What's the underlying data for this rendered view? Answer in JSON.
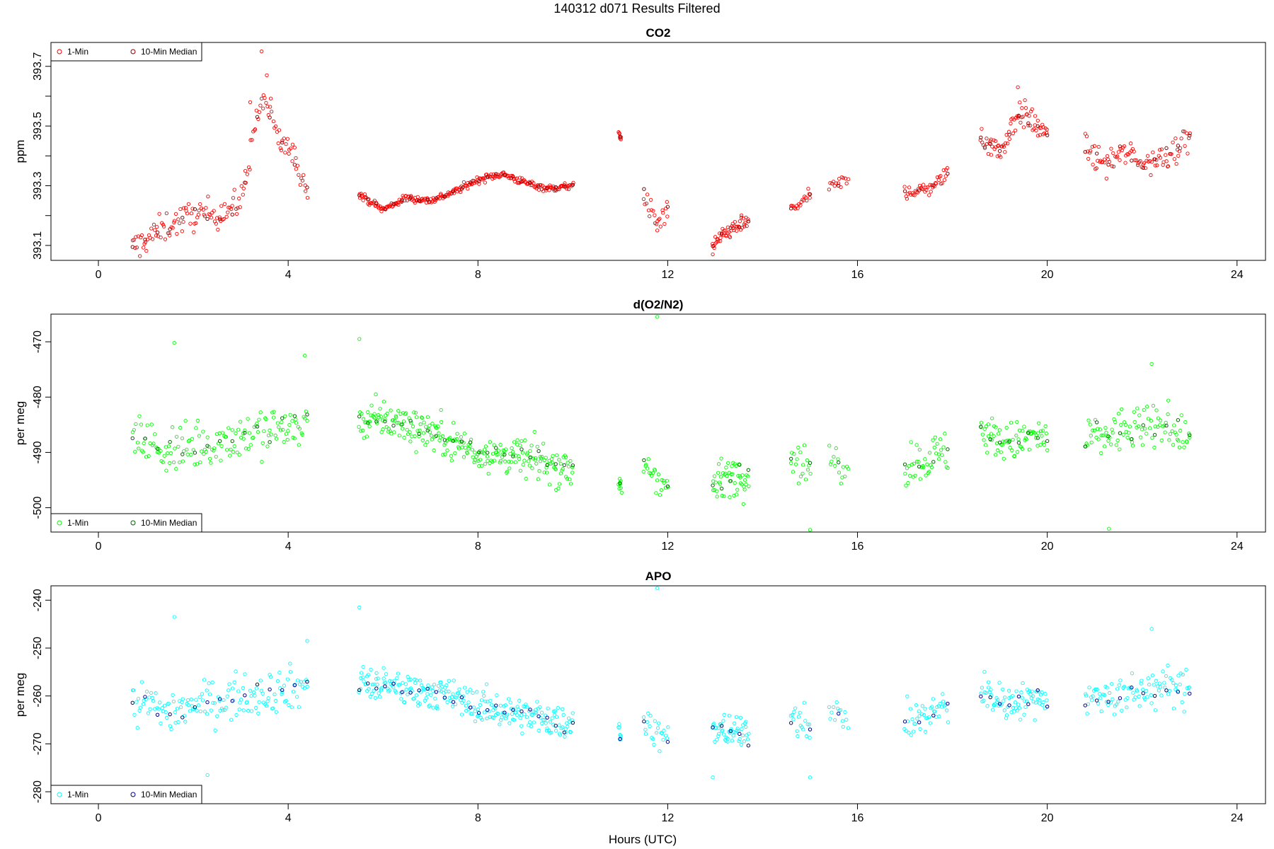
{
  "page_title": "140312   d071   Results Filtered",
  "x_axis_label": "Hours (UTC)",
  "legend": {
    "one_min": "1-Min",
    "ten_min_median": "10-Min Median"
  },
  "chart_data": [
    {
      "type": "scatter",
      "title": "CO2",
      "ylabel": "ppm",
      "xlabel": "",
      "xlim": [
        -1,
        24.6
      ],
      "ylim": [
        393.05,
        393.78
      ],
      "x_ticks": [
        0,
        4,
        8,
        12,
        16,
        20,
        24
      ],
      "y_ticks": [
        393.1,
        393.3,
        393.5,
        393.7
      ],
      "y_minor_ticks": [
        393.2,
        393.4,
        393.6
      ],
      "legend_position": "top-left",
      "colors": {
        "one_min": "#ff0000",
        "ten_min_median": "#8b0000"
      },
      "segments": [
        {
          "x": [
            0.72,
            1.0,
            1.5,
            2.0,
            2.5,
            3.0,
            3.3,
            3.5,
            3.8,
            4.0,
            4.4
          ],
          "y": [
            393.09,
            393.12,
            393.17,
            393.2,
            393.21,
            393.24,
            393.5,
            393.6,
            393.45,
            393.43,
            393.3
          ],
          "spread": 0.05,
          "n": 150
        },
        {
          "x": [
            5.5,
            6.0,
            6.5,
            7.0,
            7.5,
            8.0,
            8.5,
            9.0,
            9.5,
            10.0
          ],
          "y": [
            393.27,
            393.22,
            393.26,
            393.25,
            393.28,
            393.32,
            393.34,
            393.31,
            393.29,
            393.3
          ],
          "spread": 0.012,
          "n": 260
        },
        {
          "x": [
            10.97,
            11.02
          ],
          "y": [
            393.48,
            393.45
          ],
          "spread": 0.012,
          "n": 8
        },
        {
          "x": [
            11.5,
            11.75,
            12.0
          ],
          "y": [
            393.27,
            393.17,
            393.22
          ],
          "spread": 0.04,
          "n": 22
        },
        {
          "x": [
            12.95,
            13.3,
            13.7
          ],
          "y": [
            393.1,
            393.15,
            393.18
          ],
          "spread": 0.025,
          "n": 50
        },
        {
          "x": [
            14.6,
            15.0
          ],
          "y": [
            393.22,
            393.27
          ],
          "spread": 0.02,
          "n": 18
        },
        {
          "x": [
            15.4,
            15.8
          ],
          "y": [
            393.29,
            393.32
          ],
          "spread": 0.025,
          "n": 14
        },
        {
          "x": [
            17.0,
            17.5,
            17.9
          ],
          "y": [
            393.28,
            393.29,
            393.34
          ],
          "spread": 0.025,
          "n": 42
        },
        {
          "x": [
            18.6,
            19.0,
            19.4,
            19.8,
            20.0
          ],
          "y": [
            393.47,
            393.41,
            393.55,
            393.5,
            393.46
          ],
          "spread": 0.045,
          "n": 75
        },
        {
          "x": [
            20.8,
            21.2,
            21.6,
            22.0,
            22.5,
            23.0
          ],
          "y": [
            393.43,
            393.37,
            393.41,
            393.38,
            393.4,
            393.47
          ],
          "spread": 0.045,
          "n": 95
        }
      ],
      "highlights": [
        {
          "x": 3.44,
          "y": 393.75
        },
        {
          "x": 3.55,
          "y": 393.67
        },
        {
          "x": 3.2,
          "y": 393.58
        },
        {
          "x": 11.78,
          "y": 393.15
        },
        {
          "x": 19.38,
          "y": 393.63
        },
        {
          "x": 12.95,
          "y": 393.07
        }
      ]
    },
    {
      "type": "scatter",
      "title": "d(O2/N2)",
      "ylabel": "per meg",
      "xlabel": "",
      "xlim": [
        -1,
        24.6
      ],
      "ylim": [
        -504.4,
        -465.0
      ],
      "x_ticks": [
        0,
        4,
        8,
        12,
        16,
        20,
        24
      ],
      "y_ticks": [
        -470,
        -480,
        -490,
        -500
      ],
      "y_minor_ticks": [],
      "legend_position": "bottom-left",
      "colors": {
        "one_min": "#00ff00",
        "ten_min_median": "#006400"
      },
      "segments": [
        {
          "x": [
            0.72,
            1.5,
            2.5,
            3.5,
            4.4
          ],
          "y": [
            -487,
            -490,
            -488,
            -486,
            -485
          ],
          "spread": 4.5,
          "n": 150
        },
        {
          "x": [
            5.5,
            6.0,
            7.0,
            8.0,
            9.0,
            10.0
          ],
          "y": [
            -484,
            -484,
            -486,
            -490,
            -491,
            -493
          ],
          "spread": 3.5,
          "n": 260
        },
        {
          "x": [
            10.97,
            11.02
          ],
          "y": [
            -495,
            -497
          ],
          "spread": 2.0,
          "n": 8
        },
        {
          "x": [
            11.5,
            11.75,
            12.0
          ],
          "y": [
            -492,
            -494,
            -496
          ],
          "spread": 3.0,
          "n": 22
        },
        {
          "x": [
            12.95,
            13.3,
            13.7
          ],
          "y": [
            -496,
            -494,
            -494
          ],
          "spread": 3.5,
          "n": 50
        },
        {
          "x": [
            14.6,
            15.0
          ],
          "y": [
            -490,
            -493
          ],
          "spread": 4.0,
          "n": 18
        },
        {
          "x": [
            15.4,
            15.8
          ],
          "y": [
            -491,
            -493
          ],
          "spread": 3.0,
          "n": 14
        },
        {
          "x": [
            17.0,
            17.5,
            17.9
          ],
          "y": [
            -492,
            -491,
            -490
          ],
          "spread": 4.0,
          "n": 42
        },
        {
          "x": [
            18.6,
            19.0,
            19.4,
            19.8,
            20.0
          ],
          "y": [
            -486,
            -488,
            -488,
            -487,
            -488
          ],
          "spread": 3.5,
          "n": 75
        },
        {
          "x": [
            20.8,
            21.2,
            21.6,
            22.0,
            22.5,
            23.0
          ],
          "y": [
            -488,
            -487,
            -486,
            -486,
            -485,
            -487
          ],
          "spread": 4.0,
          "n": 95
        }
      ],
      "highlights": [
        {
          "x": 11.78,
          "y": -465.5
        },
        {
          "x": 5.5,
          "y": -469.5
        },
        {
          "x": 1.6,
          "y": -470.2
        },
        {
          "x": 4.35,
          "y": -472.5
        },
        {
          "x": 21.3,
          "y": -503.8
        },
        {
          "x": 15.0,
          "y": -504.0
        },
        {
          "x": 22.2,
          "y": -474.0
        }
      ]
    },
    {
      "type": "scatter",
      "title": "APO",
      "ylabel": "per meg",
      "xlabel": "Hours (UTC)",
      "xlim": [
        -1,
        24.6
      ],
      "ylim": [
        -282.5,
        -237.0
      ],
      "x_ticks": [
        0,
        4,
        8,
        12,
        16,
        20,
        24
      ],
      "y_ticks": [
        -240,
        -250,
        -260,
        -270,
        -280
      ],
      "y_minor_ticks": [],
      "legend_position": "bottom-left",
      "colors": {
        "one_min": "#00ffff",
        "ten_min_median": "#00008b"
      },
      "segments": [
        {
          "x": [
            0.72,
            1.5,
            2.5,
            3.5,
            4.4
          ],
          "y": [
            -261,
            -263,
            -261,
            -259,
            -258
          ],
          "spread": 4.5,
          "n": 150
        },
        {
          "x": [
            5.5,
            6.0,
            7.0,
            8.0,
            9.0,
            10.0
          ],
          "y": [
            -257,
            -258,
            -259,
            -262,
            -264,
            -266
          ],
          "spread": 3.5,
          "n": 260
        },
        {
          "x": [
            10.97,
            11.02
          ],
          "y": [
            -267,
            -269
          ],
          "spread": 2.0,
          "n": 8
        },
        {
          "x": [
            11.5,
            11.75,
            12.0
          ],
          "y": [
            -265,
            -268,
            -269
          ],
          "spread": 3.0,
          "n": 22
        },
        {
          "x": [
            12.95,
            13.3,
            13.7
          ],
          "y": [
            -268,
            -267,
            -268
          ],
          "spread": 3.5,
          "n": 50
        },
        {
          "x": [
            14.6,
            15.0
          ],
          "y": [
            -264,
            -266
          ],
          "spread": 4.0,
          "n": 18
        },
        {
          "x": [
            15.4,
            15.8
          ],
          "y": [
            -263,
            -265
          ],
          "spread": 3.0,
          "n": 14
        },
        {
          "x": [
            17.0,
            17.5,
            17.9
          ],
          "y": [
            -266,
            -264,
            -262
          ],
          "spread": 4.0,
          "n": 42
        },
        {
          "x": [
            18.6,
            19.0,
            19.4,
            19.8,
            20.0
          ],
          "y": [
            -259,
            -261,
            -261,
            -260,
            -261
          ],
          "spread": 3.5,
          "n": 75
        },
        {
          "x": [
            20.8,
            21.2,
            21.6,
            22.0,
            22.5,
            23.0
          ],
          "y": [
            -261,
            -260,
            -260,
            -259,
            -258,
            -259
          ],
          "spread": 4.0,
          "n": 95
        }
      ],
      "highlights": [
        {
          "x": 11.78,
          "y": -237.5
        },
        {
          "x": 5.5,
          "y": -241.5
        },
        {
          "x": 1.6,
          "y": -243.5
        },
        {
          "x": 2.3,
          "y": -276.5
        },
        {
          "x": 12.95,
          "y": -277.0
        },
        {
          "x": 15.0,
          "y": -277.0
        },
        {
          "x": 22.2,
          "y": -246.0
        },
        {
          "x": 4.4,
          "y": -248.5
        }
      ]
    }
  ]
}
